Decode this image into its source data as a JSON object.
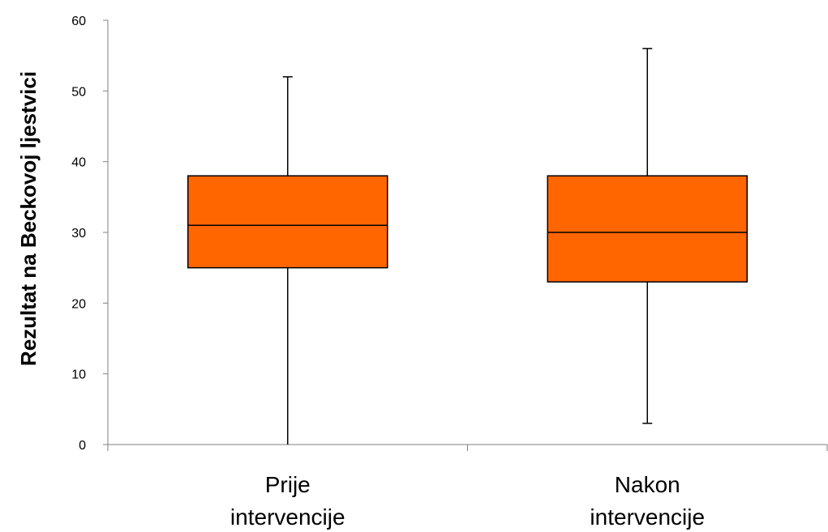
{
  "chart_data": {
    "type": "boxplot",
    "title": "",
    "xlabel": "",
    "ylabel": "Rezultat na Beckovoj ljestvici",
    "ylim": [
      0,
      60
    ],
    "yticks": [
      0,
      10,
      20,
      30,
      40,
      50,
      60
    ],
    "grid": false,
    "legend": "none",
    "box_color": "#FF6600",
    "line_color": "#000000",
    "categories": [
      {
        "line1": "Prije",
        "line2": "intervencije",
        "min": 0,
        "q1": 25,
        "median": 31,
        "q3": 38,
        "max": 52
      },
      {
        "line1": "Nakon",
        "line2": "intervencije",
        "min": 3,
        "q1": 23,
        "median": 30,
        "q3": 38,
        "max": 56
      }
    ]
  }
}
